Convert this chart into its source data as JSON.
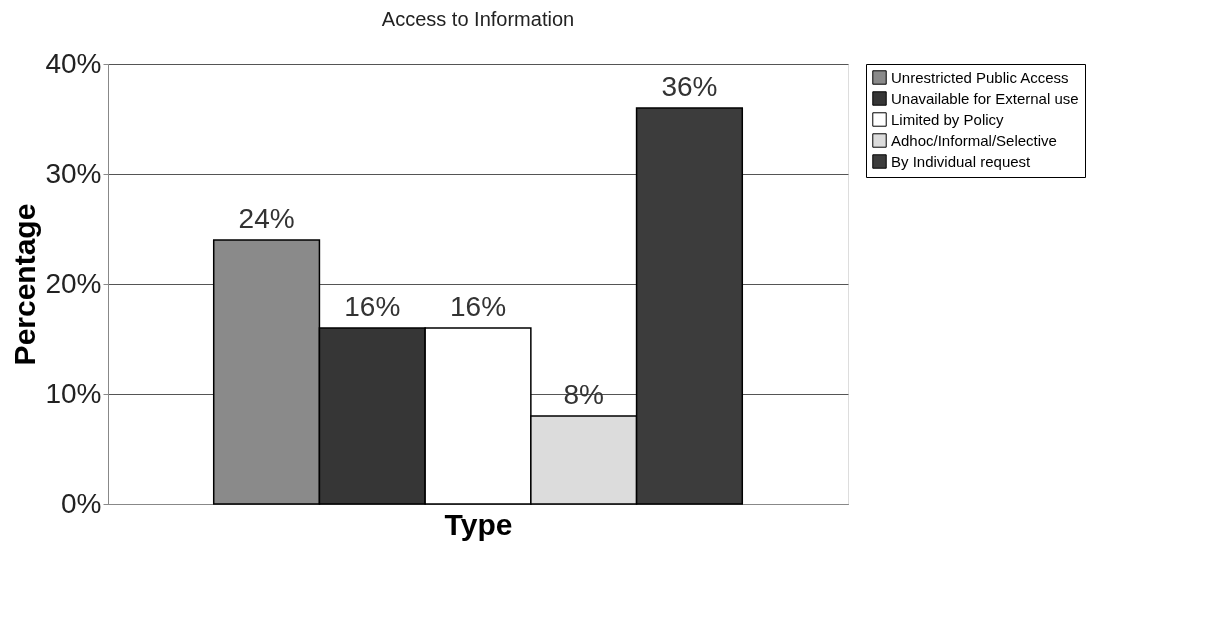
{
  "chart_data": {
    "type": "bar",
    "title": "Access to Information",
    "xlabel": "Type",
    "ylabel": "Percentage",
    "categories": [
      null
    ],
    "series": [
      {
        "name": "Unrestricted Public Access",
        "color": "#8a8a8a",
        "values": [
          24
        ],
        "value_labels": [
          "24%"
        ]
      },
      {
        "name": "Unavailable for External use",
        "color": "#363636",
        "values": [
          16
        ],
        "value_labels": [
          "16%"
        ]
      },
      {
        "name": "Limited by Policy",
        "color": "#ffffff",
        "values": [
          16
        ],
        "value_labels": [
          "16%"
        ]
      },
      {
        "name": "Adhoc/Informal/Selective",
        "color": "#dcdcdc",
        "values": [
          8
        ],
        "value_labels": [
          "8%"
        ]
      },
      {
        "name": "By Individual request",
        "color": "#3c3c3c",
        "values": [
          36
        ],
        "value_labels": [
          "36%"
        ]
      }
    ],
    "ylim": [
      0,
      40
    ],
    "yticks": [
      {
        "value": 0,
        "label": "0%"
      },
      {
        "value": 10,
        "label": "10%"
      },
      {
        "value": 20,
        "label": "20%"
      },
      {
        "value": 30,
        "label": "30%"
      },
      {
        "value": 40,
        "label": "40%"
      }
    ],
    "grid": "y",
    "legend": "right"
  }
}
